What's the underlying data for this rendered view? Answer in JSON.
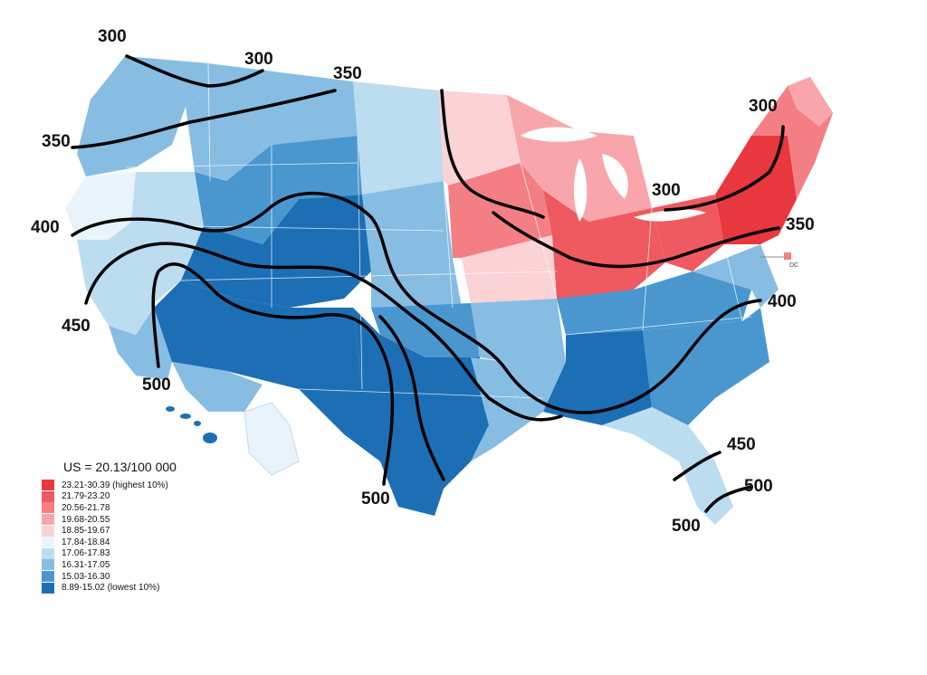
{
  "legend": {
    "title": "US = 20.13/100 000",
    "classes": [
      {
        "label": "23.21-30.39 (highest 10%)",
        "color": "#e8383d"
      },
      {
        "label": "21.79-23.20",
        "color": "#ee5a5f"
      },
      {
        "label": "20.56-21.78",
        "color": "#f37f85"
      },
      {
        "label": "19.68-20.55",
        "color": "#f8a6ab"
      },
      {
        "label": "18.85-19.67",
        "color": "#fbd2d6"
      },
      {
        "label": "17.84-18.84",
        "color": "#e9f3fb"
      },
      {
        "label": "17.06-17.83",
        "color": "#bcdcf0"
      },
      {
        "label": "16.31-17.05",
        "color": "#88bde3"
      },
      {
        "label": "15.03-16.30",
        "color": "#4a97d0"
      },
      {
        "label": "8.89-15.02 (lowest 10%)",
        "color": "#1d6fb5"
      }
    ]
  },
  "map_labels": {
    "dc": "DC"
  },
  "contours": [
    {
      "value": "300",
      "label": "300"
    },
    {
      "value": "300",
      "label": "300"
    },
    {
      "value": "350",
      "label": "350"
    },
    {
      "value": "350",
      "label": "350"
    },
    {
      "value": "400",
      "label": "400"
    },
    {
      "value": "450",
      "label": "450"
    },
    {
      "value": "500",
      "label": "500"
    },
    {
      "value": "500",
      "label": "500"
    },
    {
      "value": "300",
      "label": "300"
    },
    {
      "value": "300",
      "label": "300"
    },
    {
      "value": "350",
      "label": "350"
    },
    {
      "value": "400",
      "label": "400"
    },
    {
      "value": "450",
      "label": "450"
    },
    {
      "value": "500",
      "label": "500"
    },
    {
      "value": "500",
      "label": "500"
    }
  ]
}
